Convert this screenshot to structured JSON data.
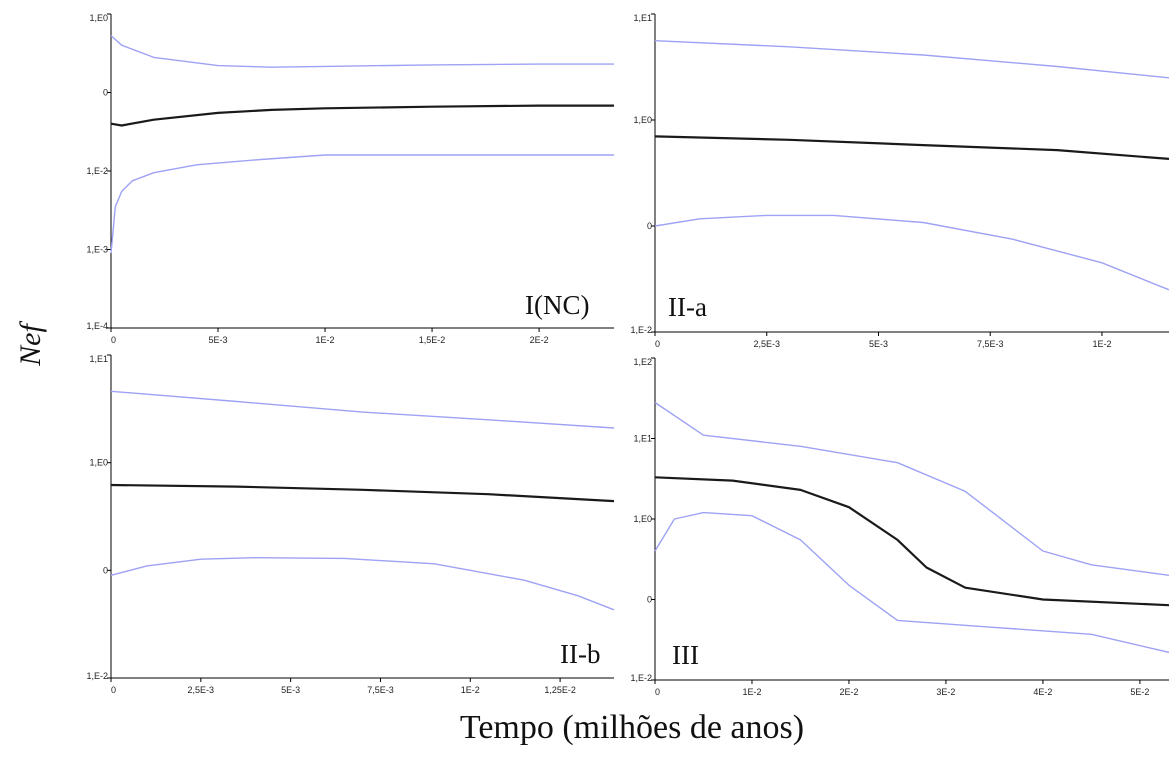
{
  "ylabel": "Nef",
  "xlabel": "Tempo (milhões de anos)",
  "colors": {
    "median": "#1a1a1a",
    "hpd": "#9ea2f4",
    "axis": "#000000"
  },
  "chart_data": [
    {
      "type": "line",
      "panel_label": "I(NC)",
      "y_scale": "log",
      "ylim": [
        0.0001,
        1
      ],
      "xlim": [
        0,
        0.0235
      ],
      "x_ticks": [
        0,
        0.005,
        0.01,
        0.015,
        0.02
      ],
      "x_tick_labels": [
        "0",
        "5E-3",
        "1E-2",
        "1,5E-2",
        "2E-2"
      ],
      "y_ticks": [
        0.0001,
        0.001,
        0.01,
        0.1,
        1
      ],
      "y_tick_labels": [
        "1,E-4",
        "1,E-3",
        "1,E-2",
        "0",
        "1,E0"
      ],
      "series": [
        {
          "role": "upper",
          "x": [
            0,
            0.0005,
            0.002,
            0.005,
            0.0075,
            0.01,
            0.015,
            0.02,
            0.0235
          ],
          "y": [
            0.53,
            0.4,
            0.28,
            0.22,
            0.21,
            0.215,
            0.225,
            0.23,
            0.23
          ]
        },
        {
          "role": "median",
          "x": [
            0,
            0.0005,
            0.002,
            0.005,
            0.0075,
            0.01,
            0.015,
            0.02,
            0.0235
          ],
          "y": [
            0.04,
            0.038,
            0.045,
            0.055,
            0.06,
            0.063,
            0.066,
            0.068,
            0.068
          ]
        },
        {
          "role": "lower",
          "x": [
            0,
            0.0002,
            0.0005,
            0.001,
            0.002,
            0.004,
            0.007,
            0.01,
            0.015,
            0.02,
            0.0235
          ],
          "y": [
            0.0009,
            0.0035,
            0.0055,
            0.0075,
            0.0095,
            0.012,
            0.014,
            0.016,
            0.016,
            0.016,
            0.016
          ]
        }
      ]
    },
    {
      "type": "line",
      "panel_label": "II-a",
      "y_scale": "log",
      "ylim": [
        0.01,
        10
      ],
      "xlim": [
        0,
        0.0115
      ],
      "x_ticks": [
        0,
        0.0025,
        0.005,
        0.0075,
        0.01
      ],
      "x_tick_labels": [
        "0",
        "2,5E-3",
        "5E-3",
        "7,5E-3",
        "1E-2"
      ],
      "y_ticks": [
        0.01,
        0.1,
        1,
        10
      ],
      "y_tick_labels": [
        "1,E-2",
        "0",
        "1,E0",
        "1,E1"
      ],
      "series": [
        {
          "role": "upper",
          "x": [
            0,
            0.003,
            0.006,
            0.009,
            0.0115
          ],
          "y": [
            5.6,
            4.9,
            4.1,
            3.2,
            2.5
          ]
        },
        {
          "role": "median",
          "x": [
            0,
            0.003,
            0.006,
            0.009,
            0.0115
          ],
          "y": [
            0.7,
            0.65,
            0.58,
            0.52,
            0.43
          ]
        },
        {
          "role": "lower",
          "x": [
            0,
            0.001,
            0.0025,
            0.004,
            0.006,
            0.008,
            0.01,
            0.0115
          ],
          "y": [
            0.1,
            0.117,
            0.126,
            0.126,
            0.108,
            0.075,
            0.045,
            0.025
          ]
        }
      ]
    },
    {
      "type": "line",
      "panel_label": "II-b",
      "y_scale": "log",
      "ylim": [
        0.01,
        10
      ],
      "xlim": [
        0,
        0.014
      ],
      "x_ticks": [
        0,
        0.0025,
        0.005,
        0.0075,
        0.01,
        0.0125
      ],
      "x_tick_labels": [
        "0",
        "2,5E-3",
        "5E-3",
        "7,5E-3",
        "1E-2",
        "1,25E-2"
      ],
      "y_ticks": [
        0.01,
        0.1,
        1,
        10
      ],
      "y_tick_labels": [
        "1,E-2",
        "0",
        "1,E0",
        "1,E1"
      ],
      "series": [
        {
          "role": "upper",
          "x": [
            0,
            0.0035,
            0.007,
            0.0105,
            0.014
          ],
          "y": [
            4.6,
            3.7,
            2.95,
            2.5,
            2.1
          ]
        },
        {
          "role": "median",
          "x": [
            0,
            0.0035,
            0.007,
            0.0105,
            0.014
          ],
          "y": [
            0.62,
            0.6,
            0.56,
            0.51,
            0.44
          ]
        },
        {
          "role": "lower",
          "x": [
            0,
            0.001,
            0.0025,
            0.004,
            0.0065,
            0.009,
            0.0115,
            0.013,
            0.014
          ],
          "y": [
            0.09,
            0.11,
            0.127,
            0.131,
            0.129,
            0.115,
            0.081,
            0.058,
            0.043
          ]
        }
      ]
    },
    {
      "type": "line",
      "panel_label": "III",
      "y_scale": "log",
      "ylim": [
        0.01,
        100
      ],
      "xlim": [
        0,
        0.053
      ],
      "x_ticks": [
        0,
        0.01,
        0.02,
        0.03,
        0.04,
        0.05
      ],
      "x_tick_labels": [
        "0",
        "1E-2",
        "2E-2",
        "3E-2",
        "4E-2",
        "5E-2"
      ],
      "y_ticks": [
        0.01,
        0.1,
        1,
        10,
        100
      ],
      "y_tick_labels": [
        "1,E-2",
        "0",
        "1,E0",
        "1,E1",
        "1,E2"
      ],
      "series": [
        {
          "role": "upper",
          "x": [
            0,
            0.005,
            0.015,
            0.025,
            0.032,
            0.04,
            0.045,
            0.053
          ],
          "y": [
            28,
            11,
            8,
            5,
            2.2,
            0.4,
            0.27,
            0.2
          ]
        },
        {
          "role": "median",
          "x": [
            0,
            0.008,
            0.015,
            0.02,
            0.025,
            0.028,
            0.032,
            0.04,
            0.053
          ],
          "y": [
            3.3,
            3.0,
            2.3,
            1.4,
            0.55,
            0.25,
            0.14,
            0.1,
            0.085
          ]
        },
        {
          "role": "lower",
          "x": [
            0,
            0.002,
            0.005,
            0.01,
            0.015,
            0.02,
            0.025,
            0.035,
            0.045,
            0.053
          ],
          "y": [
            0.4,
            1.0,
            1.2,
            1.1,
            0.55,
            0.15,
            0.055,
            0.045,
            0.037,
            0.022
          ]
        }
      ]
    }
  ]
}
